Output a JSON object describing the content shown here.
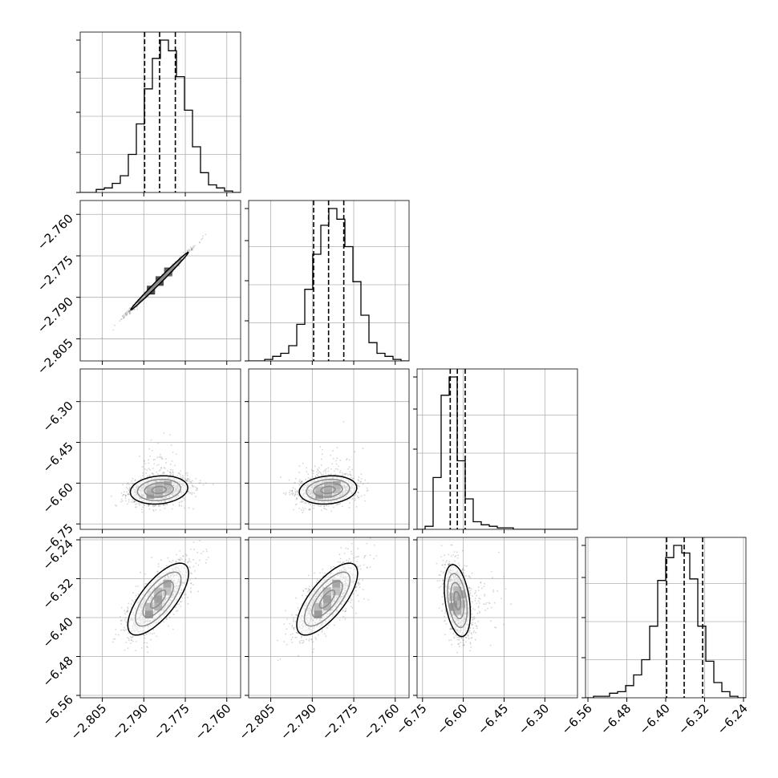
{
  "chart_data": {
    "type": "corner",
    "grid": true,
    "colors": {
      "hist": "#000000",
      "contour": "#000000",
      "points": "#888888",
      "grid": "#b0b0b0"
    },
    "params": [
      {
        "range": [
          -2.813,
          -2.755
        ],
        "ticks": [
          -2.805,
          -2.79,
          -2.775,
          -2.76
        ],
        "tick_labels": [
          "−2.805",
          "−2.790",
          "−2.775",
          "−2.760"
        ],
        "quantiles": [
          -2.7897,
          -2.7843,
          -2.7786
        ]
      },
      {
        "range": [
          -2.813,
          -2.755
        ],
        "ticks": [
          -2.805,
          -2.79,
          -2.775,
          -2.76
        ],
        "tick_labels": [
          "−2.805",
          "−2.790",
          "−2.775",
          "−2.760"
        ],
        "quantiles": [
          -2.7895,
          -2.7841,
          -2.7786
        ]
      },
      {
        "range": [
          -6.77,
          -6.18
        ],
        "ticks": [
          -6.75,
          -6.6,
          -6.45,
          -6.3
        ],
        "tick_labels": [
          "−6.75",
          "−6.60",
          "−6.45",
          "−6.30"
        ],
        "quantiles": [
          -6.648,
          -6.622,
          -6.593
        ]
      },
      {
        "range": [
          -6.565,
          -6.235
        ],
        "ticks": [
          -6.56,
          -6.48,
          -6.4,
          -6.32,
          -6.24
        ],
        "tick_labels": [
          "−6.56",
          "−6.48",
          "−6.40",
          "−6.32",
          "−6.24"
        ],
        "quantiles": [
          -6.398,
          -6.362,
          -6.324
        ]
      }
    ],
    "histograms": [
      {
        "param": 0,
        "counts": [
          0,
          0,
          2,
          3,
          6,
          11,
          25,
          45,
          68,
          88,
          100,
          93,
          76,
          54,
          30,
          13,
          5,
          3,
          1,
          0
        ]
      },
      {
        "param": 1,
        "counts": [
          0,
          0,
          1,
          3,
          5,
          10,
          24,
          47,
          70,
          89,
          100,
          93,
          75,
          52,
          30,
          12,
          5,
          3,
          1,
          0
        ]
      },
      {
        "param": 2,
        "counts": [
          0,
          2,
          34,
          88,
          100,
          45,
          20,
          5,
          3,
          2,
          1,
          1,
          0,
          0,
          0,
          0,
          0,
          0,
          0,
          0
        ]
      },
      {
        "param": 3,
        "counts": [
          0,
          1,
          1,
          3,
          4,
          8,
          15,
          25,
          47,
          77,
          92,
          100,
          95,
          78,
          47,
          24,
          10,
          4,
          1,
          0
        ]
      }
    ],
    "pairs": [
      {
        "x": 0,
        "y": 1,
        "correlation": 0.995,
        "center": [
          -2.7843,
          -2.7841
        ],
        "sigma": [
          0.0052,
          0.0052
        ]
      },
      {
        "x": 0,
        "y": 2,
        "correlation": 0.15,
        "center": [
          -2.7845,
          -6.625
        ],
        "sigma": [
          0.0052,
          0.026
        ]
      },
      {
        "x": 1,
        "y": 2,
        "correlation": 0.15,
        "center": [
          -2.7843,
          -6.625
        ],
        "sigma": [
          0.0052,
          0.026
        ]
      },
      {
        "x": 0,
        "y": 3,
        "correlation": 0.72,
        "center": [
          -2.7848,
          -6.362
        ],
        "sigma": [
          0.0055,
          0.037
        ]
      },
      {
        "x": 1,
        "y": 3,
        "correlation": 0.72,
        "center": [
          -2.7846,
          -6.362
        ],
        "sigma": [
          0.0055,
          0.037
        ]
      },
      {
        "x": 2,
        "y": 3,
        "correlation": -0.35,
        "center": [
          -6.622,
          -6.365
        ],
        "sigma": [
          0.024,
          0.037
        ]
      }
    ]
  }
}
